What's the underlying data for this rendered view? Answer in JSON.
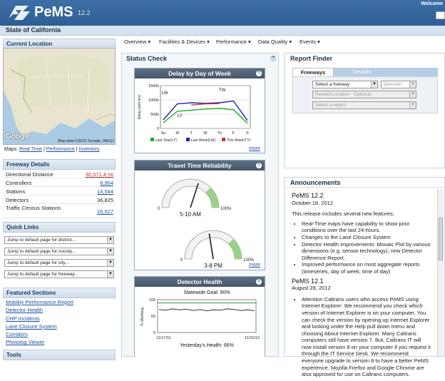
{
  "header": {
    "app_name": "PeMS",
    "version": "12.2",
    "welcome": "Welcome"
  },
  "state_bar": {
    "title": "State of California"
  },
  "nav": {
    "items": [
      "Overview ▾",
      "Facilities & Devices ▾",
      "Performance ▾",
      "Data Quality ▾",
      "Events ▾"
    ]
  },
  "current_location": {
    "title": "Current Location",
    "map_attribution": "Map data ©2012 Google, INEGI",
    "google_logo": "Google",
    "links": [
      "Real-Time",
      "Performance",
      "Inventory"
    ],
    "links_prefix": "Maps:"
  },
  "freeway_details": {
    "title": "Freeway Details",
    "rows": [
      {
        "label": "Directional Distance",
        "value": "30,571.4 mi"
      },
      {
        "label": "Controllers",
        "value": "6,954"
      },
      {
        "label": "Stations",
        "value": "14,544"
      },
      {
        "label": "Detectors",
        "value": "36,825"
      },
      {
        "label": "Traffic Census Stations",
        "value": "16,527"
      }
    ]
  },
  "quick_links": {
    "title": "Quick Links",
    "selects": [
      "Jump to default page for district...",
      "Jump to default page for county...",
      "Jump to default page for city...",
      "Jump to default page for freeway..."
    ]
  },
  "featured": {
    "title": "Featured Sections",
    "items": [
      "Mobility Performance Report",
      "Detector Health",
      "CHP Incidents",
      "Lane Closure System",
      "Corridors",
      "Photolog Viewer"
    ],
    "next_title": "Tools"
  },
  "status_check": {
    "title": "Status Check",
    "help": "?"
  },
  "delay_panel": {
    "title": "Delay by Day of Week",
    "y_axis_label": "Delay (veh-hrs)",
    "more": "more",
    "chart_data": {
      "type": "line",
      "categories": [
        "Su",
        "M",
        "T",
        "W",
        "Th",
        "F",
        "S"
      ],
      "ylim": [
        0,
        1500000
      ],
      "yticks": [
        "0",
        "500k",
        "1000k",
        "1500k"
      ],
      "series": [
        {
          "name": "Last Year(LY)",
          "color": "#22aa22",
          "values": [
            200000,
            600000,
            640000,
            680000,
            700000,
            660000,
            180000
          ]
        },
        {
          "name": "Last Week(LW)",
          "color": "#2222aa",
          "values": [
            300000,
            860000,
            900000,
            880000,
            900000,
            960000,
            280000
          ]
        },
        {
          "name": "This Week(TY)",
          "color": "#cc3333",
          "values": [
            null,
            null,
            820000,
            860000,
            870000,
            null,
            null
          ]
        }
      ],
      "annotations": [
        "LW",
        "LY",
        "TW"
      ]
    }
  },
  "reliability_panel": {
    "title": "Travel Time Reliability",
    "gauges": [
      {
        "label": "5-10 AM",
        "value": 0.6
      },
      {
        "label": "3-8 PM",
        "value": 0.45
      }
    ],
    "min": "0",
    "max": "100%",
    "more": "more"
  },
  "health_panel": {
    "title": "Detector Health",
    "goal": "Statewide Goal: 90%",
    "y_axis_label": "% Working",
    "y_ticks": [
      "100",
      "50",
      "0"
    ],
    "x_start": "11/17/11",
    "x_end": "11/16/12",
    "yesterday": "Yesterday's Health: 66%",
    "more": "more",
    "chart_data": {
      "type": "line",
      "goal": 90,
      "ylim": [
        0,
        100
      ],
      "values": [
        70,
        68,
        72,
        69,
        71,
        67,
        70,
        66,
        69,
        68,
        72,
        70,
        67,
        69,
        66
      ]
    }
  },
  "report_finder": {
    "title": "Report Finder",
    "tabs": [
      "Freeways",
      "Devices"
    ],
    "freeway_select": "Select a freeway",
    "direction_select": "Direction",
    "location_select": "Restrict Location - Optional",
    "report_select": "Select a report"
  },
  "announcements": {
    "title": "Announcements",
    "items": [
      {
        "title": "PeMS 12.2",
        "date": "October 18, 2012",
        "intro": "This release includes several new features:",
        "bullets": [
          "Real-Time maps have capability to show prior conditions over the last 24-hours.",
          "Changes to the Lane Closure System",
          "Detector Health improvements: Mosaic Plot by various dimensions (e.g. sensor technology), new Detector Difference Report.",
          "Improved performance on most aggregate reports (timeseries, day of week, time of day)"
        ]
      },
      {
        "title": "PeMS 12.1",
        "date": "August 28, 2012",
        "body": "Attention Caltrans users who access PeMS using Internet Explorer: We recommend you check which version of Internet Explorer is on your computer. You can check the version by opening up Internet Explorer and looking under the Help pull down menu and choosing About Internet Explorer. Many Caltrans computers still have version 7. But, Caltrans IT will now install version 8 on your computer if you request it through the IT Service Desk. We recommend everyone upgrade to version 8 to have a better PeMS experience. Mozilla Firefox and Google Chrome are also approved for use on Caltrans computers."
      }
    ]
  }
}
